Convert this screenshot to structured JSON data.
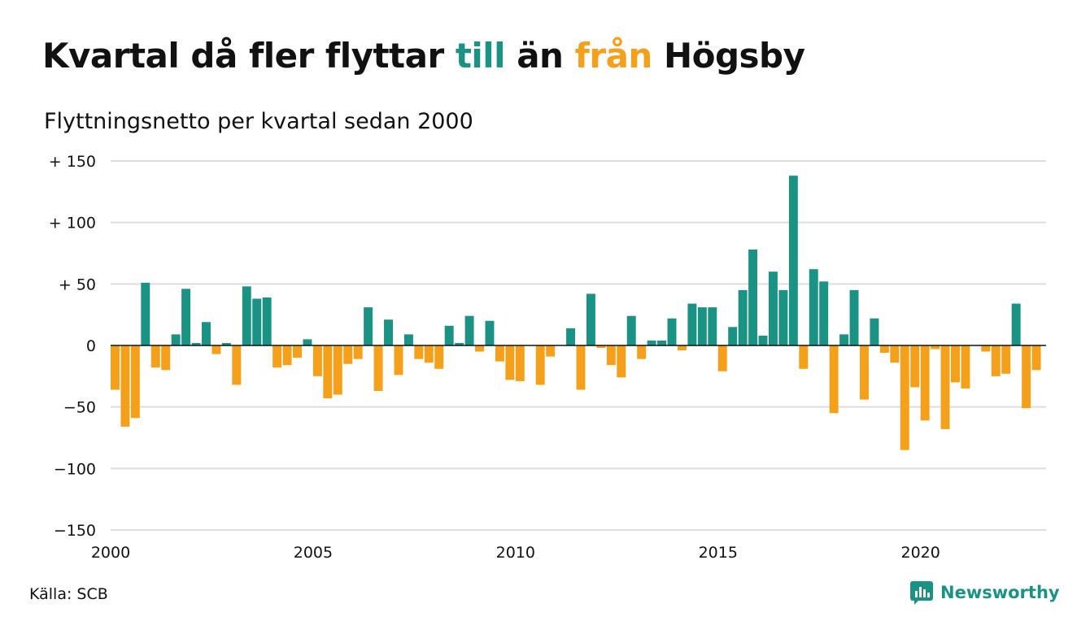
{
  "title": {
    "part1": "Kvartal då fler flyttar ",
    "in_word": "till",
    "part2": " än ",
    "out_word": "från",
    "part3": " Högsby"
  },
  "subtitle": "Flyttningsnetto per kvartal sedan 2000",
  "source": "Källa: SCB",
  "brand": {
    "name": "Newsworthy",
    "logo_icon": "bar-chart-bubble-icon"
  },
  "colors": {
    "positive": "#1a9284",
    "negative": "#f5a01a",
    "grid": "#dddddd",
    "text": "#111111"
  },
  "chart_data": {
    "type": "bar",
    "x_start": 2000,
    "x_step": 0.25,
    "xlim": [
      2000,
      2023.1
    ],
    "ylim": [
      -150,
      150
    ],
    "x_ticks": [
      {
        "value": 2000,
        "label": "2000"
      },
      {
        "value": 2005,
        "label": "2005"
      },
      {
        "value": 2010,
        "label": "2010"
      },
      {
        "value": 2015,
        "label": "2015"
      },
      {
        "value": 2020,
        "label": "2020"
      }
    ],
    "y_ticks": [
      {
        "value": 150,
        "label": "+ 150"
      },
      {
        "value": 100,
        "label": "+ 100"
      },
      {
        "value": 50,
        "label": "+  50"
      },
      {
        "value": 0,
        "label": "0"
      },
      {
        "value": -50,
        "label": "−50"
      },
      {
        "value": -100,
        "label": "−100"
      },
      {
        "value": -150,
        "label": "−150"
      }
    ],
    "grid": true,
    "legend": "none",
    "values": [
      -36,
      -66,
      -59,
      51,
      -18,
      -20,
      9,
      46,
      2,
      19,
      -7,
      2,
      -32,
      48,
      38,
      39,
      -18,
      -16,
      -10,
      5,
      -25,
      -43,
      -40,
      -15,
      -11,
      31,
      -37,
      21,
      -24,
      9,
      -11,
      -14,
      -19,
      16,
      2,
      24,
      -5,
      20,
      -13,
      -28,
      -29,
      0,
      -32,
      -9,
      0,
      14,
      -36,
      42,
      -2,
      -16,
      -26,
      24,
      -11,
      4,
      4,
      22,
      -4,
      34,
      31,
      31,
      -21,
      15,
      45,
      78,
      8,
      60,
      45,
      138,
      -19,
      62,
      52,
      -55,
      9,
      45,
      -44,
      22,
      -6,
      -14,
      -85,
      -34,
      -61,
      -3,
      -68,
      -30,
      -35,
      0,
      -5,
      -25,
      -23,
      34,
      -51,
      -20
    ]
  }
}
